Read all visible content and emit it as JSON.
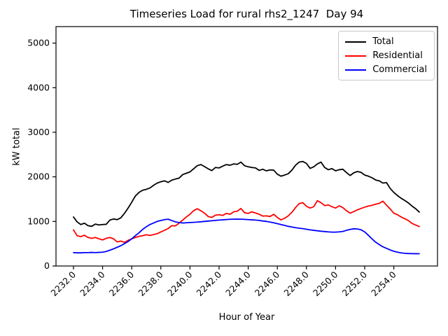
{
  "window": {
    "background": "#ffffff"
  },
  "chart_data": {
    "type": "line",
    "title": "Timeseries Load for rural rhs2_1247  Day 94",
    "xlabel": "Hour of Year",
    "ylabel": "kW total",
    "xlim": [
      2230.8,
      2257.0
    ],
    "ylim": [
      0,
      5370
    ],
    "grid": false,
    "legend_position": "upper right",
    "xticks": [
      "2232.0",
      "2234.0",
      "2236.0",
      "2238.0",
      "2240.0",
      "2242.0",
      "2244.0",
      "2246.0",
      "2248.0",
      "2250.0",
      "2252.0",
      "2254.0"
    ],
    "xtick_values": [
      2232,
      2234,
      2236,
      2238,
      2240,
      2242,
      2244,
      2246,
      2248,
      2250,
      2252,
      2254
    ],
    "yticks": [
      "0",
      "1000",
      "2000",
      "3000",
      "4000",
      "5000"
    ],
    "ytick_values": [
      0,
      1000,
      2000,
      3000,
      4000,
      5000
    ],
    "x": [
      2232.0,
      2232.25,
      2232.5,
      2232.75,
      2233.0,
      2233.25,
      2233.5,
      2233.75,
      2234.0,
      2234.25,
      2234.5,
      2234.75,
      2235.0,
      2235.25,
      2235.5,
      2235.75,
      2236.0,
      2236.25,
      2236.5,
      2236.75,
      2237.0,
      2237.25,
      2237.5,
      2237.75,
      2238.0,
      2238.25,
      2238.5,
      2238.75,
      2239.0,
      2239.25,
      2239.5,
      2239.75,
      2240.0,
      2240.25,
      2240.5,
      2240.75,
      2241.0,
      2241.25,
      2241.5,
      2241.75,
      2242.0,
      2242.25,
      2242.5,
      2242.75,
      2243.0,
      2243.25,
      2243.5,
      2243.75,
      2244.0,
      2244.25,
      2244.5,
      2244.75,
      2245.0,
      2245.25,
      2245.5,
      2245.75,
      2246.0,
      2246.25,
      2246.5,
      2246.75,
      2247.0,
      2247.25,
      2247.5,
      2247.75,
      2248.0,
      2248.25,
      2248.5,
      2248.75,
      2249.0,
      2249.25,
      2249.5,
      2249.75,
      2250.0,
      2250.25,
      2250.5,
      2250.75,
      2251.0,
      2251.25,
      2251.5,
      2251.75,
      2252.0,
      2252.25,
      2252.5,
      2252.75,
      2253.0,
      2253.25,
      2253.5,
      2253.75,
      2254.0,
      2254.25,
      2254.5,
      2254.75,
      2255.0,
      2255.25,
      2255.5,
      2255.75
    ],
    "series": [
      {
        "name": "Total",
        "color": "#000000",
        "values": [
          1100,
          990,
          930,
          960,
          905,
          890,
          940,
          920,
          930,
          935,
          1030,
          1055,
          1040,
          1080,
          1180,
          1300,
          1430,
          1570,
          1650,
          1700,
          1720,
          1750,
          1810,
          1860,
          1890,
          1910,
          1875,
          1925,
          1950,
          1970,
          2050,
          2080,
          2110,
          2180,
          2250,
          2275,
          2230,
          2180,
          2140,
          2210,
          2200,
          2240,
          2275,
          2260,
          2290,
          2280,
          2330,
          2250,
          2225,
          2210,
          2200,
          2145,
          2170,
          2135,
          2155,
          2150,
          2060,
          2015,
          2040,
          2070,
          2150,
          2260,
          2330,
          2345,
          2300,
          2190,
          2225,
          2290,
          2330,
          2210,
          2160,
          2185,
          2135,
          2160,
          2170,
          2095,
          2030,
          2090,
          2120,
          2100,
          2040,
          2015,
          1980,
          1930,
          1910,
          1860,
          1870,
          1740,
          1650,
          1580,
          1520,
          1470,
          1415,
          1345,
          1285,
          1210
        ]
      },
      {
        "name": "Residential",
        "color": "#ff0000",
        "values": [
          810,
          680,
          660,
          690,
          640,
          620,
          640,
          610,
          585,
          620,
          640,
          610,
          540,
          560,
          530,
          575,
          610,
          640,
          665,
          680,
          700,
          685,
          705,
          725,
          765,
          800,
          840,
          905,
          900,
          960,
          1030,
          1100,
          1160,
          1240,
          1285,
          1240,
          1185,
          1110,
          1090,
          1140,
          1150,
          1135,
          1180,
          1160,
          1215,
          1230,
          1290,
          1195,
          1180,
          1215,
          1190,
          1160,
          1120,
          1125,
          1110,
          1160,
          1090,
          1035,
          1070,
          1125,
          1205,
          1310,
          1400,
          1420,
          1340,
          1300,
          1330,
          1465,
          1420,
          1355,
          1370,
          1330,
          1300,
          1350,
          1310,
          1240,
          1185,
          1220,
          1260,
          1290,
          1320,
          1345,
          1360,
          1385,
          1405,
          1455,
          1365,
          1280,
          1185,
          1150,
          1100,
          1060,
          1020,
          955,
          920,
          885
        ]
      },
      {
        "name": "Commercial",
        "color": "#0000ff",
        "values": [
          300,
          295,
          295,
          300,
          300,
          305,
          300,
          305,
          310,
          325,
          355,
          385,
          420,
          455,
          500,
          550,
          610,
          680,
          745,
          820,
          880,
          930,
          965,
          1000,
          1020,
          1040,
          1050,
          1020,
          990,
          975,
          965,
          970,
          975,
          980,
          985,
          992,
          1000,
          1008,
          1015,
          1022,
          1030,
          1035,
          1042,
          1048,
          1050,
          1052,
          1050,
          1046,
          1040,
          1035,
          1030,
          1022,
          1010,
          1000,
          985,
          970,
          950,
          930,
          910,
          890,
          875,
          860,
          848,
          838,
          825,
          810,
          800,
          790,
          780,
          772,
          765,
          760,
          760,
          765,
          775,
          800,
          820,
          835,
          830,
          812,
          765,
          690,
          610,
          535,
          480,
          430,
          395,
          360,
          330,
          310,
          295,
          285,
          280,
          278,
          276,
          275
        ]
      }
    ]
  }
}
